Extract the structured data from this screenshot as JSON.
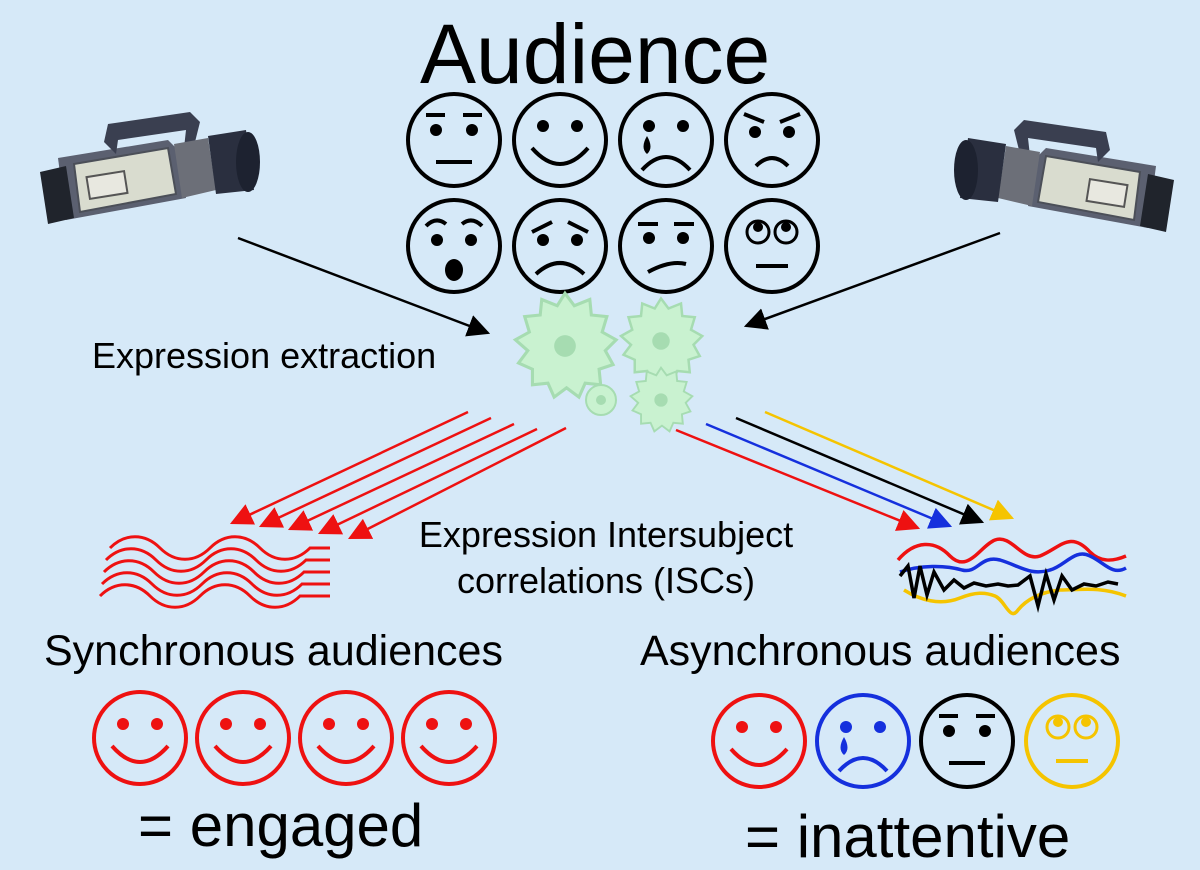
{
  "title": "Audience",
  "labels": {
    "expression_extraction": "Expression extraction",
    "isc": "Expression Intersubject correlations (ISCs)",
    "synchronous": "Synchronous audiences",
    "asynchronous": "Asynchronous audiences",
    "engaged": "= engaged",
    "inattentive": "= inattentive"
  },
  "audience_faces": [
    "neutral",
    "happy",
    "crying",
    "angry",
    "surprised",
    "worried",
    "unsure",
    "eye-roll"
  ],
  "synchronous_faces": [
    "happy",
    "happy",
    "happy",
    "happy"
  ],
  "asynchronous_faces": [
    "happy",
    "crying",
    "neutral",
    "eye-roll"
  ],
  "colors": {
    "background": "#d6e9f8",
    "red": "#ee1111",
    "blue": "#1530dd",
    "black": "#000000",
    "yellow": "#f5c400",
    "gear": "#c9f2d0"
  },
  "icons": [
    "camera-left-icon",
    "camera-right-icon",
    "gears-icon"
  ]
}
